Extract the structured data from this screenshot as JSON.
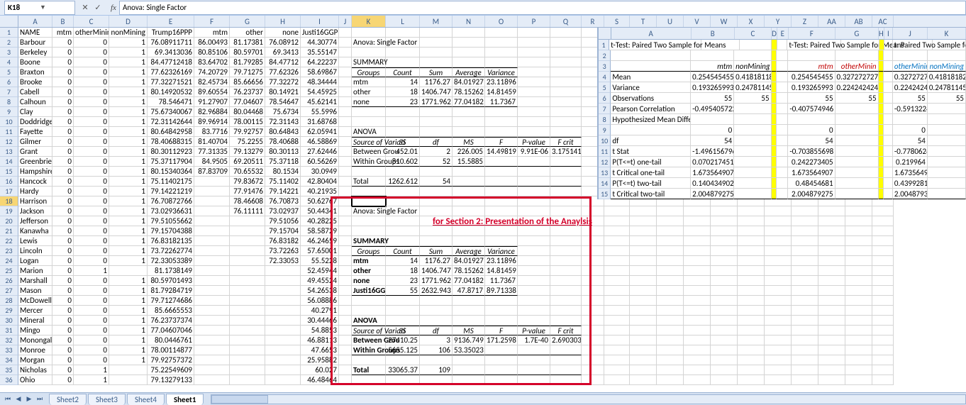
{
  "namebox": "K18",
  "formula": "Anova: Single Factor",
  "columns_main": [
    "A",
    "B",
    "C",
    "D",
    "E",
    "F",
    "G",
    "H",
    "I",
    "J",
    "K",
    "L",
    "M",
    "N",
    "O",
    "P",
    "Q",
    "R",
    "S",
    "T",
    "U",
    "V",
    "W",
    "X",
    "Y",
    "Z",
    "AA",
    "AB",
    "AC"
  ],
  "col_widths": [
    "wA",
    "wB",
    "wC",
    "wD",
    "wE",
    "wF",
    "wG",
    "wH",
    "wI",
    "wJ",
    "wK",
    "wL",
    "wM",
    "wN",
    "wO",
    "wP",
    "wQ",
    "wR",
    "wS",
    "wT",
    "wU",
    "wV",
    "wW",
    "wX",
    "wY",
    "wZ",
    "wAA",
    "wAB",
    "wAC"
  ],
  "selected_col_idx": 10,
  "selected_row": 18,
  "headers_row": [
    "NAME",
    "mtm",
    "otherMinin",
    "nonMining",
    "Trump16PPP",
    "mtm",
    "other",
    "none",
    "Justi16GGP"
  ],
  "rows": [
    [
      "Barbour",
      "0",
      "0",
      "1",
      "76.08911711",
      "86.00493",
      "81.17381",
      "76.08912",
      "44.30774"
    ],
    [
      "Berkeley",
      "0",
      "0",
      "1",
      "69.3413036",
      "80.85106",
      "80.59701",
      "69.3413",
      "35.55147"
    ],
    [
      "Boone",
      "0",
      "0",
      "1",
      "84.47712418",
      "83.64702",
      "81.79285",
      "84.47712",
      "64.22237"
    ],
    [
      "Braxton",
      "0",
      "0",
      "1",
      "77.62326169",
      "74.20729",
      "79.71275",
      "77.62326",
      "58.69867"
    ],
    [
      "Brooke",
      "0",
      "0",
      "1",
      "77.32271521",
      "82.45734",
      "85.66656",
      "77.32272",
      "48.34444"
    ],
    [
      "Cabell",
      "0",
      "0",
      "1",
      "80.14920532",
      "89.60554",
      "76.23737",
      "80.14921",
      "54.45925"
    ],
    [
      "Calhoun",
      "0",
      "0",
      "1",
      "78.546471",
      "91.27907",
      "77.04607",
      "78.54647",
      "45.62141"
    ],
    [
      "Clay",
      "0",
      "0",
      "1",
      "75.67340067",
      "82.96884",
      "80.04468",
      "75.6734",
      "55.5996"
    ],
    [
      "Doddridge",
      "0",
      "0",
      "1",
      "72.31142644",
      "89.96914",
      "78.00115",
      "72.31143",
      "31.68768"
    ],
    [
      "Fayette",
      "0",
      "0",
      "1",
      "80.64842958",
      "83.7716",
      "79.92757",
      "80.64843",
      "62.05941"
    ],
    [
      "Gilmer",
      "0",
      "0",
      "1",
      "78.40688315",
      "81.40704",
      "75.2255",
      "78.40688",
      "46.58869"
    ],
    [
      "Grant",
      "0",
      "0",
      "1",
      "80.30112923",
      "77.31335",
      "79.13279",
      "80.30113",
      "27.62446"
    ],
    [
      "Greenbrier",
      "0",
      "0",
      "1",
      "75.37117904",
      "84.9505",
      "69.20511",
      "75.37118",
      "60.56269"
    ],
    [
      "Hampshire",
      "0",
      "0",
      "1",
      "80.15340364",
      "87.83709",
      "70.65532",
      "80.1534",
      "30.0949"
    ],
    [
      "Hancock",
      "0",
      "0",
      "1",
      "75.11402175",
      "",
      "79.83672",
      "75.11402",
      "42.80404"
    ],
    [
      "Hardy",
      "0",
      "0",
      "1",
      "79.14221219",
      "",
      "77.91476",
      "79.14221",
      "40.21935"
    ],
    [
      "Harrison",
      "0",
      "0",
      "1",
      "76.70872766",
      "",
      "78.46608",
      "76.70873",
      "50.62767"
    ],
    [
      "Jackson",
      "0",
      "0",
      "1",
      "73.02936631",
      "",
      "76.11111",
      "73.02937",
      "50.44341"
    ],
    [
      "Jefferson",
      "0",
      "0",
      "1",
      "79.51055662",
      "",
      "",
      "79.51056",
      "40.28225"
    ],
    [
      "Kanawha",
      "0",
      "0",
      "1",
      "79.15704388",
      "",
      "",
      "79.15704",
      "58.58729"
    ],
    [
      "Lewis",
      "0",
      "0",
      "1",
      "76.83182135",
      "",
      "",
      "76.83182",
      "46.24659"
    ],
    [
      "Lincoln",
      "0",
      "0",
      "1",
      "73.72262774",
      "",
      "",
      "73.72263",
      "57.65001"
    ],
    [
      "Logan",
      "0",
      "0",
      "1",
      "72.33053389",
      "",
      "",
      "72.33053",
      "55.5228"
    ],
    [
      "Marion",
      "0",
      "1",
      "",
      "81.1738149",
      "",
      "",
      "",
      "52.45944"
    ],
    [
      "Marshall",
      "0",
      "0",
      "1",
      "80.59701493",
      "",
      "",
      "",
      "49.45524"
    ],
    [
      "Mason",
      "0",
      "0",
      "1",
      "81.79284719",
      "",
      "",
      "",
      "54.26538"
    ],
    [
      "McDowell",
      "0",
      "0",
      "1",
      "79.71274686",
      "",
      "",
      "",
      "56.08886"
    ],
    [
      "Mercer",
      "0",
      "0",
      "1",
      "85.6665553",
      "",
      "",
      "",
      "40.2791"
    ],
    [
      "Mineral",
      "0",
      "0",
      "1",
      "76.23737374",
      "",
      "",
      "",
      "30.44466"
    ],
    [
      "Mingo",
      "0",
      "0",
      "1",
      "77.04607046",
      "",
      "",
      "",
      "54.8853"
    ],
    [
      "Monongal",
      "0",
      "0",
      "1",
      "80.0446761",
      "",
      "",
      "",
      "46.88113"
    ],
    [
      "Monroe",
      "0",
      "0",
      "1",
      "78.00114877",
      "",
      "",
      "",
      "47.6653"
    ],
    [
      "Morgan",
      "0",
      "0",
      "1",
      "79.92757372",
      "",
      "",
      "",
      "25.95882"
    ],
    [
      "Nicholas",
      "0",
      "1",
      "",
      "75.22549609",
      "",
      "",
      "",
      "60.027"
    ],
    [
      "Ohio",
      "0",
      "1",
      "",
      "79.13279133",
      "",
      "",
      "",
      "46.48464"
    ]
  ],
  "anova_top": {
    "title": "Anova: Single Factor",
    "summary_label": "SUMMARY",
    "groups_hdr": [
      "Groups",
      "Count",
      "Sum",
      "Average",
      "Variance"
    ],
    "groups": [
      [
        "mtm",
        "14",
        "1176.27",
        "84.01927",
        "23.11896"
      ],
      [
        "other",
        "18",
        "1406.747",
        "78.15262",
        "14.81459"
      ],
      [
        "none",
        "23",
        "1771.962",
        "77.04182",
        "11.7367"
      ]
    ],
    "anova_label": "ANOVA",
    "anova_hdr": [
      "Source of Variati",
      "SS",
      "df",
      "MS",
      "F",
      "P-value",
      "F crit"
    ],
    "bg": [
      "Between Grou",
      "452.01",
      "2",
      "226.005",
      "14.49819",
      "9.91E-06",
      "3.175141"
    ],
    "wg": [
      "Within Groups",
      "810.602",
      "52",
      "15.5885",
      "",
      "",
      ""
    ],
    "total": [
      "Total",
      "1262.612",
      "54",
      "",
      "",
      "",
      ""
    ]
  },
  "anova_bottom": {
    "title": "Anova: Single Factor",
    "summary_label": "SUMMARY",
    "groups_hdr": [
      "Groups",
      "Count",
      "Sum",
      "Average",
      "Variance"
    ],
    "groups": [
      [
        "mtm",
        "14",
        "1176.27",
        "84.01927",
        "23.11896"
      ],
      [
        "other",
        "18",
        "1406.747",
        "78.15262",
        "14.81459"
      ],
      [
        "none",
        "23",
        "1771.962",
        "77.04182",
        "11.7367"
      ],
      [
        "Justi16GGP",
        "55",
        "2632.943",
        "47.8717",
        "89.71338"
      ]
    ],
    "anova_label": "ANOVA",
    "anova_hdr": [
      "Source of Variati",
      "SS",
      "df",
      "MS",
      "F",
      "P-value",
      "F crit"
    ],
    "bg": [
      "Between Grou",
      "27410.25",
      "3",
      "9136.749",
      "171.2598",
      "1.7E-40",
      "2.690303"
    ],
    "wg": [
      "Within Groups",
      "5655.125",
      "106",
      "53.35023",
      "",
      "",
      ""
    ],
    "total": [
      "Total",
      "33065.37",
      "109",
      "",
      "",
      "",
      ""
    ]
  },
  "panel2": {
    "cols": [
      "A",
      "B",
      "C",
      "D",
      "E",
      "F",
      "G",
      "H",
      "I",
      "J",
      "K"
    ],
    "title1": "t-Test: Paired Two Sample for Means",
    "title2": "t-Test: Paired Two Sample for Means",
    "title3": "t: Paired Two Sample for M",
    "hdr": [
      "",
      "mtm",
      "nonMining",
      "",
      "",
      "mtm",
      "otherMinin",
      "",
      "",
      "otherMinin",
      "nonMining"
    ],
    "rows": [
      [
        "Mean",
        "0.254545455",
        "0.418181182",
        "",
        "",
        "0.254545455",
        "0.327272727",
        "",
        "",
        "0.3272727",
        "0.41818182"
      ],
      [
        "Variance",
        "0.193265993",
        "0.24781145",
        "",
        "",
        "0.193265993",
        "0.224242424",
        "",
        "",
        "0.2242424",
        "0.24781145"
      ],
      [
        "Observations",
        "55",
        "55",
        "",
        "",
        "55",
        "55",
        "",
        "",
        "55",
        "55"
      ],
      [
        "Pearson Correlation",
        "-0.495405722",
        "",
        "",
        "",
        "-0.407574946",
        "",
        "",
        "",
        "-0.5913224",
        ""
      ],
      [
        "Hypothesized Mean Differ",
        "",
        "",
        "",
        "",
        "",
        "",
        "",
        "",
        "",
        ""
      ],
      [
        "",
        "0",
        "",
        "",
        "",
        "0",
        "",
        "",
        "",
        "0",
        ""
      ],
      [
        "df",
        "54",
        "",
        "",
        "",
        "54",
        "",
        "",
        "",
        "54",
        ""
      ],
      [
        "t Stat",
        "-1.496156796",
        "",
        "",
        "",
        "-0.703855698",
        "",
        "",
        "",
        "-0.7780624",
        ""
      ],
      [
        "P(T<=t) one-tail",
        "0.070217451",
        "",
        "",
        "",
        "0.242273405",
        "",
        "",
        "",
        "0.219964",
        ""
      ],
      [
        "t Critical one-tail",
        "1.673564907",
        "",
        "",
        "",
        "1.673564907",
        "",
        "",
        "",
        "1.6735649",
        ""
      ],
      [
        "P(T<=t) two-tail",
        "0.140434902",
        "",
        "",
        "",
        "0.48454681",
        "",
        "",
        "",
        "0.4399281",
        ""
      ],
      [
        "t Critical two-tail",
        "2.004879275",
        "",
        "",
        "",
        "2.004879275",
        "",
        "",
        "",
        "2.0048793",
        ""
      ]
    ]
  },
  "red_label": "for Section 2: Presentation of the Anaylsis",
  "tabs": [
    "Sheet2",
    "Sheet3",
    "Sheet4",
    "Sheet1"
  ],
  "active_tab": 3
}
